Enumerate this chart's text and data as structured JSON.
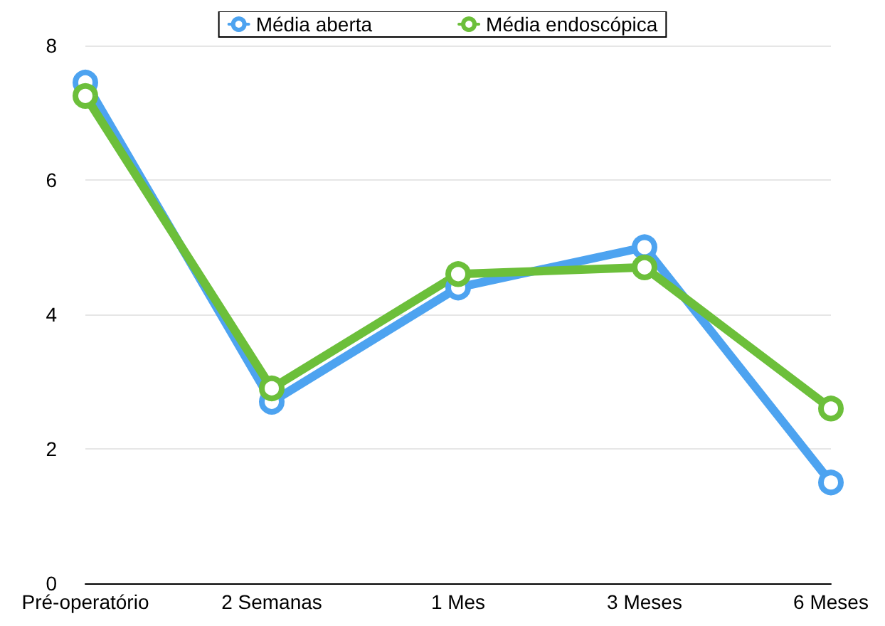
{
  "chart_data": {
    "type": "line",
    "categories": [
      "Pré-operatório",
      "2 Semanas",
      "1 Mes",
      "3 Meses",
      "6 Meses"
    ],
    "series": [
      {
        "name": "Média aberta",
        "color": "#4da3f0",
        "values": [
          7.45,
          2.7,
          4.4,
          5.0,
          1.5
        ]
      },
      {
        "name": "Média endoscópica",
        "color": "#6cbf3a",
        "values": [
          7.25,
          2.9,
          4.6,
          4.7,
          2.6
        ]
      }
    ],
    "ylim": [
      0,
      8
    ],
    "yticks": [
      0,
      2,
      4,
      6,
      8
    ],
    "grid": "y",
    "legend": "top",
    "marker": "circle",
    "line_style": "solid"
  }
}
